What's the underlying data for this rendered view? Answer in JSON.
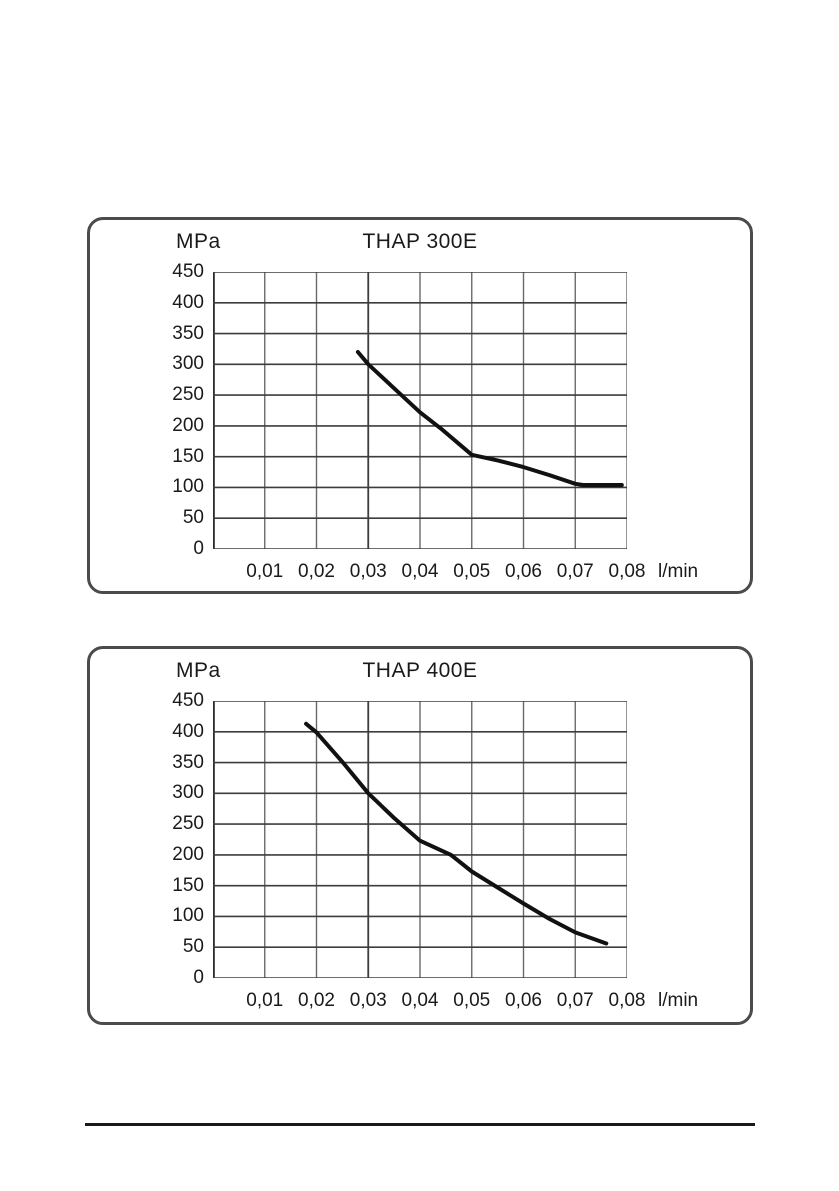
{
  "page": {
    "background": "#ffffff",
    "footer_rule_color": "#1a1a1a"
  },
  "chart_data": [
    {
      "type": "line",
      "title": "THAP 300E",
      "ylabel": "MPa",
      "xlabel": "l/min",
      "xlim": [
        0,
        0.08
      ],
      "ylim": [
        0,
        450
      ],
      "x_ticks": [
        0.01,
        0.02,
        0.03,
        0.04,
        0.05,
        0.06,
        0.07,
        0.08
      ],
      "x_tick_labels": [
        "0,01",
        "0,02",
        "0,03",
        "0,04",
        "0,05",
        "0,06",
        "0,07",
        "0,08"
      ],
      "y_ticks": [
        0,
        50,
        100,
        150,
        200,
        250,
        300,
        350,
        400,
        450
      ],
      "y_tick_labels": [
        "0",
        "50",
        "100",
        "150",
        "200",
        "250",
        "300",
        "350",
        "400",
        "450"
      ],
      "grid": true,
      "legend": false,
      "emphasized_x_tick": 0.03,
      "series": [
        {
          "name": "THAP 300E",
          "x": [
            0.028,
            0.03,
            0.035,
            0.04,
            0.044,
            0.05,
            0.055,
            0.06,
            0.065,
            0.07,
            0.0715,
            0.079
          ],
          "y": [
            320,
            300,
            261,
            222,
            196,
            153,
            144,
            133,
            120,
            106,
            104,
            104
          ]
        }
      ],
      "colors": {
        "line": "#111111",
        "grid_h": "#3d3d3d",
        "grid_v": "#6a6a6a",
        "grid_v_dark": "#3d3d3d",
        "axis": "#2b2b2b"
      }
    },
    {
      "type": "line",
      "title": "THAP 400E",
      "ylabel": "MPa",
      "xlabel": "l/min",
      "xlim": [
        0,
        0.08
      ],
      "ylim": [
        0,
        450
      ],
      "x_ticks": [
        0.01,
        0.02,
        0.03,
        0.04,
        0.05,
        0.06,
        0.07,
        0.08
      ],
      "x_tick_labels": [
        "0,01",
        "0,02",
        "0,03",
        "0,04",
        "0,05",
        "0,06",
        "0,07",
        "0,08"
      ],
      "y_ticks": [
        0,
        50,
        100,
        150,
        200,
        250,
        300,
        350,
        400,
        450
      ],
      "y_tick_labels": [
        "0",
        "50",
        "100",
        "150",
        "200",
        "250",
        "300",
        "350",
        "400",
        "450"
      ],
      "grid": true,
      "legend": false,
      "emphasized_x_tick": 0.03,
      "series": [
        {
          "name": "THAP 400E",
          "x": [
            0.018,
            0.02,
            0.025,
            0.03,
            0.035,
            0.04,
            0.046,
            0.05,
            0.055,
            0.06,
            0.065,
            0.07,
            0.076
          ],
          "y": [
            413,
            399,
            351,
            300,
            260,
            223,
            200,
            173,
            147,
            121,
            96,
            74,
            56
          ]
        }
      ],
      "colors": {
        "line": "#111111",
        "grid_h": "#3d3d3d",
        "grid_v": "#6a6a6a",
        "grid_v_dark": "#3d3d3d",
        "axis": "#2b2b2b"
      }
    }
  ]
}
